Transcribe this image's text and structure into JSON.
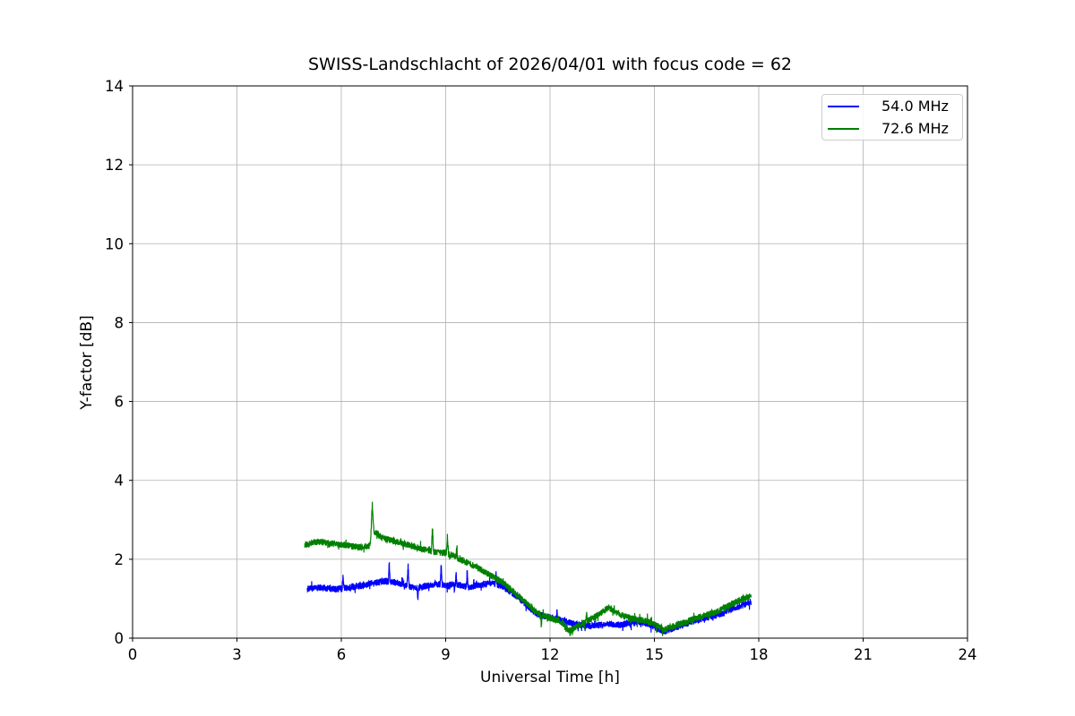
{
  "chart_data": {
    "type": "line",
    "title": "SWISS-Landschlacht of 2026/04/01 with focus code = 62",
    "xlabel": "Universal Time [h]",
    "ylabel": "Y-factor [dB]",
    "xlim": [
      0,
      24
    ],
    "ylim": [
      0,
      14
    ],
    "xticks": [
      0,
      3,
      6,
      9,
      12,
      15,
      18,
      21,
      24
    ],
    "yticks": [
      0,
      2,
      4,
      6,
      8,
      10,
      12,
      14
    ],
    "grid": true,
    "grid_color": "#b0b0b0",
    "spine_color": "#000000",
    "background": "#ffffff",
    "legend_position": "upper right",
    "sample_step": 0.004,
    "series": [
      {
        "name": "54.0 MHz",
        "color": "#0000ff",
        "x_range": [
          5.02,
          17.78
        ],
        "noise": 0.085,
        "seed": 1234567,
        "keypoints": [
          [
            5.02,
            1.25
          ],
          [
            5.4,
            1.28
          ],
          [
            5.8,
            1.24
          ],
          [
            6.2,
            1.28
          ],
          [
            6.6,
            1.33
          ],
          [
            6.9,
            1.4
          ],
          [
            7.2,
            1.44
          ],
          [
            7.5,
            1.42
          ],
          [
            7.8,
            1.36
          ],
          [
            8.1,
            1.26
          ],
          [
            8.45,
            1.33
          ],
          [
            8.75,
            1.38
          ],
          [
            9.0,
            1.33
          ],
          [
            9.35,
            1.35
          ],
          [
            9.7,
            1.3
          ],
          [
            10.0,
            1.36
          ],
          [
            10.35,
            1.4
          ],
          [
            10.6,
            1.32
          ],
          [
            10.85,
            1.18
          ],
          [
            11.1,
            1.02
          ],
          [
            11.35,
            0.82
          ],
          [
            11.6,
            0.62
          ],
          [
            11.85,
            0.55
          ],
          [
            12.1,
            0.5
          ],
          [
            12.4,
            0.44
          ],
          [
            12.7,
            0.36
          ],
          [
            13.0,
            0.31
          ],
          [
            13.4,
            0.33
          ],
          [
            13.7,
            0.36
          ],
          [
            14.0,
            0.33
          ],
          [
            14.3,
            0.39
          ],
          [
            14.6,
            0.41
          ],
          [
            14.85,
            0.35
          ],
          [
            15.1,
            0.24
          ],
          [
            15.3,
            0.17
          ],
          [
            15.55,
            0.25
          ],
          [
            15.8,
            0.33
          ],
          [
            16.1,
            0.42
          ],
          [
            16.4,
            0.5
          ],
          [
            16.7,
            0.56
          ],
          [
            17.0,
            0.64
          ],
          [
            17.3,
            0.76
          ],
          [
            17.55,
            0.84
          ],
          [
            17.78,
            0.92
          ]
        ],
        "spikes": [
          {
            "x": 6.05,
            "dv": 0.28,
            "w": 0.025
          },
          {
            "x": 7.38,
            "dv": 0.42,
            "w": 0.025
          },
          {
            "x": 7.92,
            "dv": 0.5,
            "w": 0.03
          },
          {
            "x": 8.2,
            "dv": -0.28,
            "w": 0.025
          },
          {
            "x": 8.87,
            "dv": 0.52,
            "w": 0.03
          },
          {
            "x": 9.3,
            "dv": 0.3,
            "w": 0.02
          },
          {
            "x": 9.62,
            "dv": 0.35,
            "w": 0.025
          },
          {
            "x": 10.45,
            "dv": 0.28,
            "w": 0.02
          },
          {
            "x": 12.2,
            "dv": 0.2,
            "w": 0.02
          },
          {
            "x": 17.1,
            "dv": 0.2,
            "w": 0.02
          }
        ]
      },
      {
        "name": "72.6 MHz",
        "color": "#008000",
        "x_range": [
          4.95,
          17.78
        ],
        "noise": 0.085,
        "seed": 987654,
        "keypoints": [
          [
            4.95,
            2.38
          ],
          [
            5.3,
            2.44
          ],
          [
            5.7,
            2.4
          ],
          [
            6.1,
            2.36
          ],
          [
            6.5,
            2.3
          ],
          [
            6.8,
            2.34
          ],
          [
            6.95,
            2.7
          ],
          [
            7.15,
            2.56
          ],
          [
            7.4,
            2.48
          ],
          [
            7.7,
            2.42
          ],
          [
            8.0,
            2.34
          ],
          [
            8.35,
            2.26
          ],
          [
            8.7,
            2.18
          ],
          [
            9.0,
            2.16
          ],
          [
            9.35,
            2.02
          ],
          [
            9.7,
            1.88
          ],
          [
            10.0,
            1.74
          ],
          [
            10.3,
            1.58
          ],
          [
            10.6,
            1.44
          ],
          [
            10.85,
            1.26
          ],
          [
            11.1,
            1.06
          ],
          [
            11.35,
            0.86
          ],
          [
            11.6,
            0.66
          ],
          [
            11.85,
            0.56
          ],
          [
            12.1,
            0.48
          ],
          [
            12.35,
            0.4
          ],
          [
            12.55,
            0.18
          ],
          [
            12.75,
            0.28
          ],
          [
            13.0,
            0.4
          ],
          [
            13.35,
            0.58
          ],
          [
            13.7,
            0.78
          ],
          [
            14.0,
            0.6
          ],
          [
            14.3,
            0.5
          ],
          [
            14.6,
            0.46
          ],
          [
            14.85,
            0.42
          ],
          [
            15.1,
            0.3
          ],
          [
            15.3,
            0.22
          ],
          [
            15.55,
            0.3
          ],
          [
            15.8,
            0.38
          ],
          [
            16.1,
            0.47
          ],
          [
            16.4,
            0.56
          ],
          [
            16.7,
            0.64
          ],
          [
            17.0,
            0.76
          ],
          [
            17.3,
            0.9
          ],
          [
            17.55,
            1.0
          ],
          [
            17.78,
            1.06
          ]
        ],
        "spikes": [
          {
            "x": 6.89,
            "dv": 0.82,
            "w": 0.05
          },
          {
            "x": 8.62,
            "dv": 0.62,
            "w": 0.03
          },
          {
            "x": 9.05,
            "dv": 0.45,
            "w": 0.03
          },
          {
            "x": 9.32,
            "dv": 0.3,
            "w": 0.02
          },
          {
            "x": 11.75,
            "dv": -0.3,
            "w": 0.025
          },
          {
            "x": 12.58,
            "dv": -0.12,
            "w": 0.02
          },
          {
            "x": 13.05,
            "dv": 0.2,
            "w": 0.02
          }
        ]
      }
    ]
  }
}
